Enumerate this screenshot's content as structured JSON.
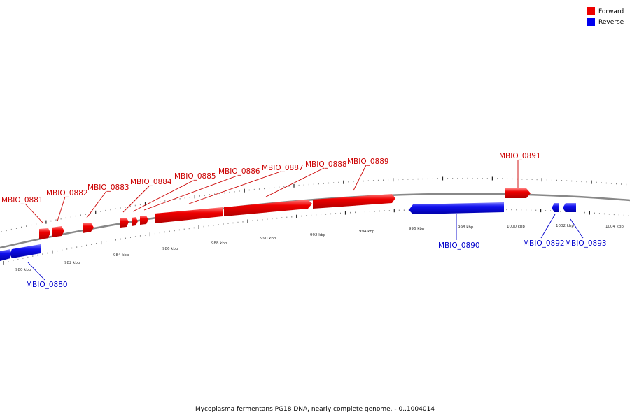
{
  "caption": "Mycoplasma fermentans PG18 DNA, nearly complete genome. - 0..1004014",
  "legend": [
    {
      "label": "Forward",
      "color": "#ee0000"
    },
    {
      "label": "Reverse",
      "color": "#0000ee"
    }
  ],
  "colors": {
    "forward": "#ee0000",
    "reverse": "#0000ee",
    "forward_label": "#cc0000",
    "reverse_label": "#0000cc",
    "backbone": "#888888"
  },
  "scale_labels": [
    "980 kbp",
    "982 kbp",
    "984 kbp",
    "986 kbp",
    "988 kbp",
    "990 kbp",
    "992 kbp",
    "994 kbp",
    "996 kbp",
    "998 kbp",
    "1000 kbp",
    "1002 kbp",
    "1004 kbp"
  ],
  "genes": [
    {
      "name": "MBIO_0880",
      "strand": "reverse"
    },
    {
      "name": "MBIO_0881",
      "strand": "forward"
    },
    {
      "name": "MBIO_0882",
      "strand": "forward"
    },
    {
      "name": "MBIO_0883",
      "strand": "forward"
    },
    {
      "name": "MBIO_0884",
      "strand": "forward"
    },
    {
      "name": "MBIO_0885",
      "strand": "forward"
    },
    {
      "name": "MBIO_0886",
      "strand": "forward"
    },
    {
      "name": "MBIO_0887",
      "strand": "forward"
    },
    {
      "name": "MBIO_0888",
      "strand": "forward"
    },
    {
      "name": "MBIO_0889",
      "strand": "forward"
    },
    {
      "name": "MBIO_0890",
      "strand": "reverse"
    },
    {
      "name": "MBIO_0891",
      "strand": "forward"
    },
    {
      "name": "MBIO_0892",
      "strand": "reverse"
    },
    {
      "name": "MBIO_0893",
      "strand": "reverse"
    }
  ]
}
